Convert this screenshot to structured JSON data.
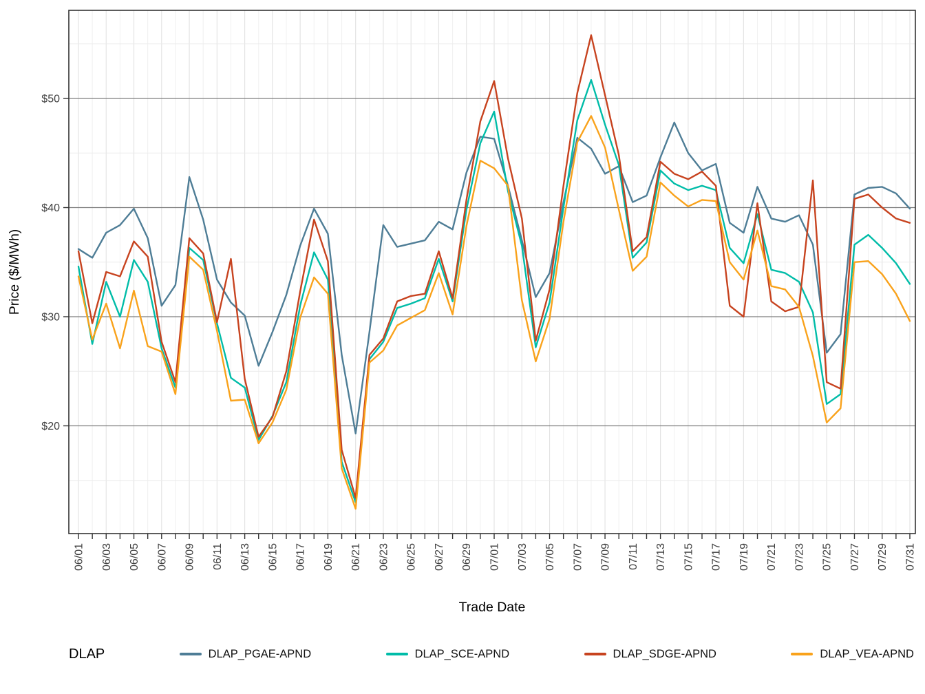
{
  "chart_data": {
    "type": "line",
    "title": "",
    "xlabel": "Trade Date",
    "ylabel": "Price ($/MWh)",
    "legend_title": "DLAP",
    "legend_position": "bottom",
    "grid": true,
    "ylim": [
      10.1,
      58.1
    ],
    "y_major_ticks": [
      20,
      30,
      40,
      50
    ],
    "y_tick_labels": [
      "$20",
      "$30",
      "$40",
      "$50"
    ],
    "y_minor_gridlines": [
      15,
      25,
      35,
      45,
      55
    ],
    "x_tick_labels": [
      "06/01",
      "06/03",
      "06/05",
      "06/07",
      "06/09",
      "06/11",
      "06/13",
      "06/15",
      "06/17",
      "06/19",
      "06/21",
      "06/23",
      "06/25",
      "06/27",
      "06/29",
      "07/01",
      "07/03",
      "07/05",
      "07/07",
      "07/09",
      "07/11",
      "07/13",
      "07/15",
      "07/17",
      "07/19",
      "07/21",
      "07/23",
      "07/25",
      "07/27",
      "07/29",
      "07/31"
    ],
    "x": [
      "06/01",
      "06/02",
      "06/03",
      "06/04",
      "06/05",
      "06/06",
      "06/07",
      "06/08",
      "06/09",
      "06/10",
      "06/11",
      "06/12",
      "06/13",
      "06/14",
      "06/15",
      "06/16",
      "06/17",
      "06/18",
      "06/19",
      "06/20",
      "06/21",
      "06/22",
      "06/23",
      "06/24",
      "06/25",
      "06/26",
      "06/27",
      "06/28",
      "06/29",
      "06/30",
      "07/01",
      "07/02",
      "07/03",
      "07/04",
      "07/05",
      "07/06",
      "07/07",
      "07/08",
      "07/09",
      "07/10",
      "07/11",
      "07/12",
      "07/13",
      "07/14",
      "07/15",
      "07/16",
      "07/17",
      "07/18",
      "07/19",
      "07/20",
      "07/21",
      "07/22",
      "07/23",
      "07/24",
      "07/25",
      "07/26",
      "07/27",
      "07/28",
      "07/29",
      "07/30",
      "07/31"
    ],
    "series": [
      {
        "name": "DLAP_PGAE-APND",
        "color": "#4E7D96",
        "values": [
          36.2,
          35.4,
          37.7,
          38.4,
          39.9,
          37.2,
          31.0,
          32.9,
          42.8,
          38.9,
          33.4,
          31.3,
          30.1,
          25.5,
          28.6,
          32.0,
          36.5,
          39.9,
          37.6,
          26.5,
          19.3,
          28.6,
          38.4,
          36.4,
          36.7,
          37.0,
          38.7,
          38.0,
          43.2,
          46.5,
          46.3,
          42.0,
          37.0,
          31.8,
          34.0,
          40.5,
          46.4,
          45.4,
          43.1,
          43.8,
          40.5,
          41.1,
          44.6,
          47.8,
          45.0,
          43.4,
          44.0,
          38.6,
          37.7,
          41.9,
          39.0,
          38.7,
          39.3,
          36.6,
          26.7,
          28.4,
          41.2,
          41.8,
          41.9,
          41.3,
          39.9
        ]
      },
      {
        "name": "DLAP_SCE-APND",
        "color": "#00BCA8",
        "values": [
          34.6,
          27.5,
          33.2,
          30.0,
          35.2,
          33.2,
          27.1,
          23.5,
          36.3,
          35.2,
          29.4,
          24.4,
          23.5,
          18.7,
          20.9,
          24.0,
          31.0,
          35.9,
          33.4,
          16.7,
          13.0,
          26.1,
          27.7,
          30.8,
          31.2,
          31.7,
          35.3,
          31.4,
          39.8,
          45.9,
          48.8,
          41.5,
          36.5,
          27.2,
          31.3,
          40.0,
          48.0,
          51.7,
          47.6,
          43.9,
          35.4,
          36.8,
          43.4,
          42.2,
          41.6,
          42.0,
          41.6,
          36.3,
          34.9,
          39.4,
          34.3,
          34.0,
          33.2,
          30.4,
          22.0,
          22.9,
          36.6,
          37.5,
          36.3,
          34.9,
          33.0
        ]
      },
      {
        "name": "DLAP_SDGE-APND",
        "color": "#C7431F",
        "values": [
          36.0,
          29.4,
          34.1,
          33.7,
          36.9,
          35.5,
          27.7,
          24.0,
          37.2,
          35.8,
          29.5,
          35.3,
          24.3,
          19.0,
          20.8,
          25.0,
          32.3,
          38.9,
          35.1,
          17.8,
          13.4,
          26.5,
          28.0,
          31.4,
          31.9,
          32.1,
          36.0,
          31.7,
          40.7,
          47.9,
          51.6,
          44.5,
          39.0,
          27.8,
          32.5,
          42.0,
          50.5,
          55.8,
          50.3,
          44.8,
          36.0,
          37.3,
          44.2,
          43.1,
          42.6,
          43.3,
          42.0,
          31.0,
          30.0,
          40.4,
          31.4,
          30.5,
          30.9,
          42.5,
          24.0,
          23.4,
          40.8,
          41.2,
          40.0,
          39.0,
          38.6
        ]
      },
      {
        "name": "DLAP_VEA-APND",
        "color": "#F9A21B",
        "values": [
          33.7,
          27.9,
          31.2,
          27.1,
          32.4,
          27.3,
          26.8,
          22.9,
          35.5,
          34.3,
          28.7,
          22.3,
          22.4,
          18.4,
          20.3,
          23.3,
          29.9,
          33.6,
          32.1,
          16.1,
          12.4,
          25.8,
          26.9,
          29.2,
          29.9,
          30.6,
          34.0,
          30.2,
          38.3,
          44.3,
          43.6,
          42.0,
          31.5,
          25.9,
          29.8,
          38.7,
          46.0,
          48.4,
          45.5,
          39.8,
          34.2,
          35.5,
          42.3,
          41.1,
          40.1,
          40.7,
          40.6,
          35.0,
          33.4,
          37.9,
          32.8,
          32.5,
          30.9,
          26.4,
          20.3,
          21.6,
          35.0,
          35.1,
          33.9,
          32.1,
          29.6
        ]
      }
    ]
  },
  "style_colors": {
    "major_hgrid": "#7d7d7d",
    "minor_hgrid": "#ebebeb",
    "major_vgrid": "#e2e2e2",
    "minor_vgrid": "#f1f1f1",
    "panel_border": "#333333",
    "tick_text": "#404040",
    "axis_title": "#000000"
  }
}
